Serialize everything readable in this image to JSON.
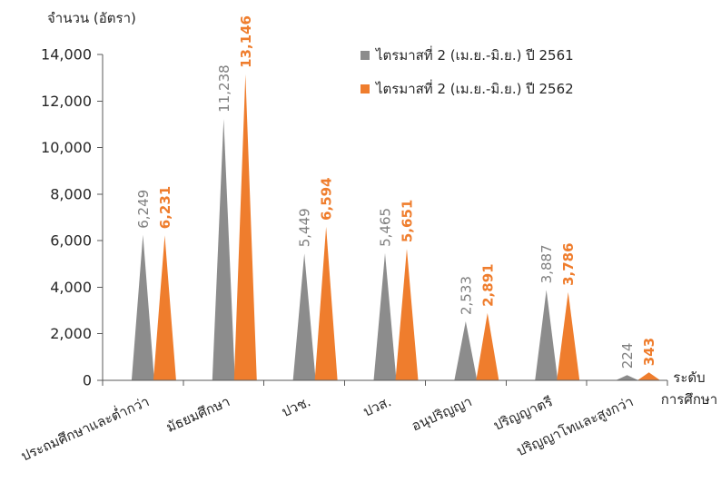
{
  "chart_data": {
    "type": "bar",
    "mark_shape": "triangle",
    "ylabel": "จำนวน (อัตรา)",
    "xlabel_lines": [
      "ระดับ",
      "การศึกษา"
    ],
    "categories": [
      "ประถมศึกษาและต่ำกว่า",
      "มัธยมศึกษา",
      "ปวช.",
      "ปวส.",
      "อนุปริญญา",
      "ปริญญาตรี",
      "ปริญญาโทและสูงกว่า"
    ],
    "ylim": [
      0,
      14000
    ],
    "yticks": [
      0,
      2000,
      4000,
      6000,
      8000,
      10000,
      12000,
      14000
    ],
    "ytick_labels": [
      "0",
      "2,000",
      "4,000",
      "6,000",
      "8,000",
      "10,000",
      "12,000",
      "14,000"
    ],
    "grid": false,
    "legend": "top-right",
    "series": [
      {
        "name": "ไตรมาสที่ 2 (เม.ย.-มิ.ย.) ปี 2561",
        "color": "#8c8c8c",
        "label_color": "#7f7f7f",
        "values": [
          6249,
          11238,
          5449,
          5465,
          2533,
          3887,
          224
        ],
        "data_labels": [
          "6,249",
          "11,238",
          "5,449",
          "5,465",
          "2,533",
          "3,887",
          "224"
        ]
      },
      {
        "name": "ไตรมาสที่ 2 (เม.ย.-มิ.ย.) ปี 2562",
        "color": "#ef7d2d",
        "label_color": "#ef7d2d",
        "values": [
          6231,
          13146,
          6594,
          5651,
          2891,
          3786,
          343
        ],
        "data_labels": [
          "6,231",
          "13,146",
          "6,594",
          "5,651",
          "2,891",
          "3,786",
          "343"
        ]
      }
    ]
  }
}
